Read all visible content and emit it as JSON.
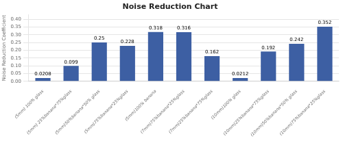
{
  "chart_data": {
    "type": "bar",
    "title": "Noise Reduction Chart",
    "ylabel": "Noise Reduction Coefficient",
    "categories": [
      "(5mm) 100% glass",
      "(5mm) 25%banana*75%glass",
      "(5mm)50%banana*50% glass",
      "(5mm)75%banana*25%glass",
      "(5mm)100% banana",
      "(7mm)75%banana*25%glass",
      "(7mm)25%banana*75%glass",
      "(10mm)100% glass",
      "(10mm)25%banana*75%glass",
      "(10mm)50%banana*50% glass",
      "(10mm)75%banana*25%glass"
    ],
    "values": [
      0.0208,
      0.099,
      0.25,
      0.228,
      0.318,
      0.316,
      0.162,
      0.0212,
      0.192,
      0.242,
      0.352
    ],
    "value_labels": [
      "0.0208",
      "0.099",
      "0.25",
      "0.228",
      "0.318",
      "0.316",
      "0.162",
      "0.0212",
      "0.192",
      "0.242",
      "0.352"
    ],
    "data_labels": true,
    "color": "#3D5FA3",
    "ylim": [
      0,
      0.43
    ],
    "yticks": [
      {
        "value": 0,
        "label": "0.00"
      },
      0.05,
      {
        "value": 0.1,
        "label": "0.10"
      },
      0.15,
      {
        "value": 0.2,
        "label": "0.20"
      },
      0.25,
      {
        "value": 0.3,
        "label": "0.30"
      },
      0.35,
      {
        "value": 0.4,
        "label": "0.40"
      }
    ],
    "grid": true
  }
}
